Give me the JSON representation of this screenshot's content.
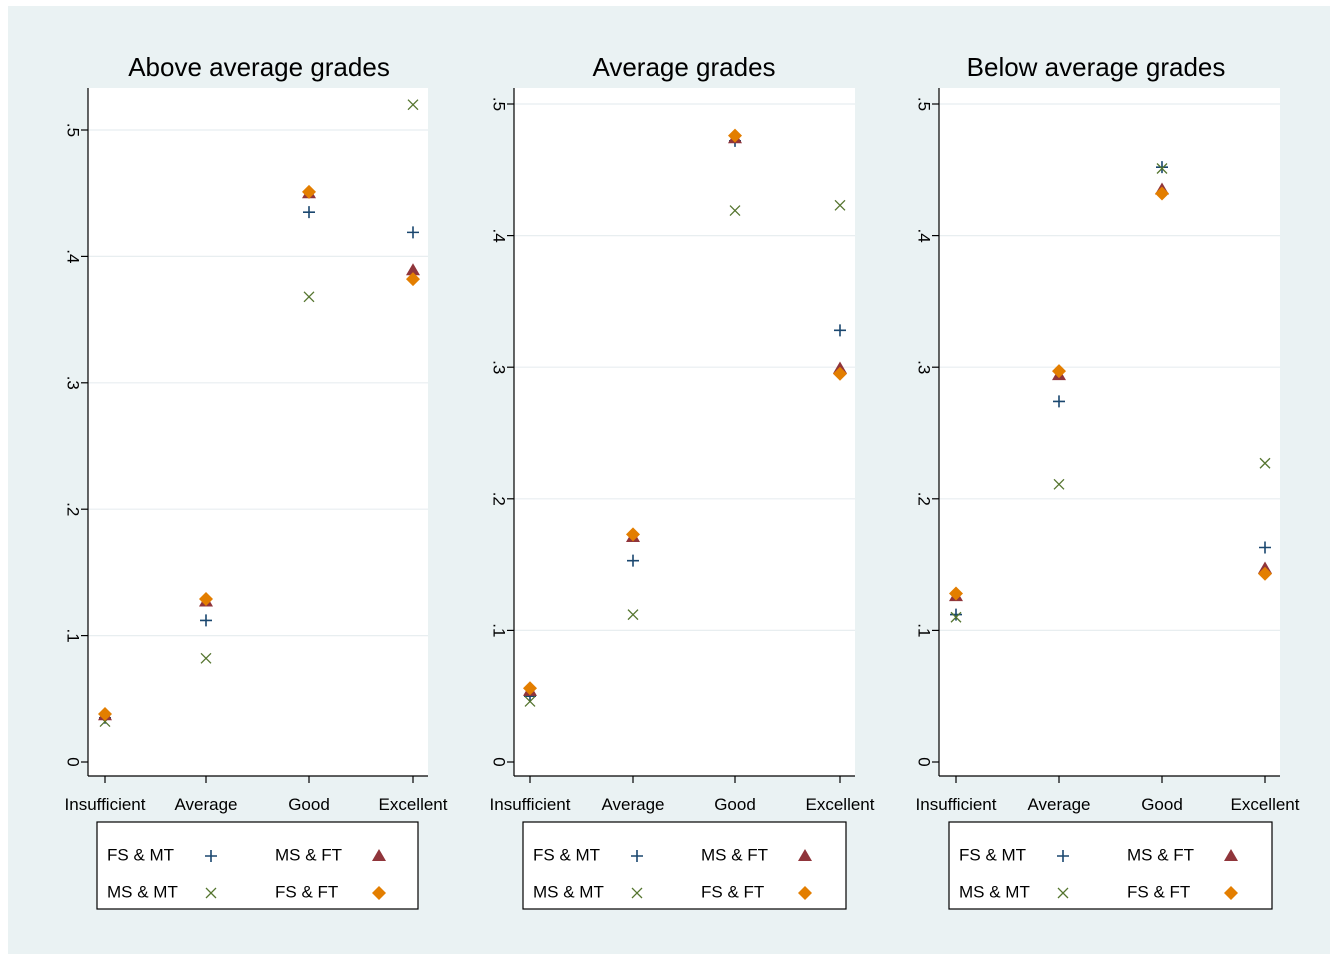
{
  "colors": {
    "FS & MT": "#1a476f",
    "MS & MT": "#55752f",
    "MS & FT": "#90353b",
    "FS & FT": "#e37e00"
  },
  "chart_data": [
    {
      "type": "scatter",
      "title": "Above average grades",
      "categories": [
        "Insufficient",
        "Average",
        "Good",
        "Excellent"
      ],
      "ylim": [
        0,
        0.5
      ],
      "yticks": [
        0,
        0.1,
        0.2,
        0.3,
        0.4,
        0.5
      ],
      "ytick_labels": [
        "0",
        ".1",
        ".2",
        ".3",
        ".4",
        ".5"
      ],
      "grid": true,
      "legend_position": "bottom",
      "series": [
        {
          "name": "FS & MT",
          "marker": "plus",
          "values": [
            0.035,
            0.112,
            0.435,
            0.419
          ]
        },
        {
          "name": "MS & MT",
          "marker": "x",
          "values": [
            0.032,
            0.082,
            0.368,
            0.52
          ]
        },
        {
          "name": "MS & FT",
          "marker": "triangle",
          "values": [
            0.037,
            0.127,
            0.45,
            0.389
          ]
        },
        {
          "name": "FS & FT",
          "marker": "diamond",
          "values": [
            0.038,
            0.129,
            0.451,
            0.382
          ]
        }
      ]
    },
    {
      "type": "scatter",
      "title": "Average grades",
      "categories": [
        "Insufficient",
        "Average",
        "Good",
        "Excellent"
      ],
      "ylim": [
        0,
        0.5
      ],
      "yticks": [
        0,
        0.1,
        0.2,
        0.3,
        0.4,
        0.5
      ],
      "ytick_labels": [
        "0",
        ".1",
        ".2",
        ".3",
        ".4",
        ".5"
      ],
      "grid": true,
      "legend_position": "bottom",
      "series": [
        {
          "name": "FS & MT",
          "marker": "plus",
          "values": [
            0.05,
            0.153,
            0.472,
            0.328
          ]
        },
        {
          "name": "MS & MT",
          "marker": "x",
          "values": [
            0.046,
            0.112,
            0.419,
            0.423
          ]
        },
        {
          "name": "MS & FT",
          "marker": "triangle",
          "values": [
            0.054,
            0.171,
            0.474,
            0.299
          ]
        },
        {
          "name": "FS & FT",
          "marker": "diamond",
          "values": [
            0.056,
            0.173,
            0.476,
            0.295
          ]
        }
      ]
    },
    {
      "type": "scatter",
      "title": "Below average grades",
      "categories": [
        "Insufficient",
        "Average",
        "Good",
        "Excellent"
      ],
      "ylim": [
        0,
        0.5
      ],
      "yticks": [
        0,
        0.1,
        0.2,
        0.3,
        0.4,
        0.5
      ],
      "ytick_labels": [
        "0",
        ".1",
        ".2",
        ".3",
        ".4",
        ".5"
      ],
      "grid": true,
      "legend_position": "bottom",
      "series": [
        {
          "name": "FS & MT",
          "marker": "plus",
          "values": [
            0.112,
            0.274,
            0.452,
            0.163
          ]
        },
        {
          "name": "MS & MT",
          "marker": "x",
          "values": [
            0.11,
            0.211,
            0.451,
            0.227
          ]
        },
        {
          "name": "MS & FT",
          "marker": "triangle",
          "values": [
            0.126,
            0.294,
            0.435,
            0.147
          ]
        },
        {
          "name": "FS & FT",
          "marker": "diamond",
          "values": [
            0.128,
            0.297,
            0.432,
            0.143
          ]
        }
      ]
    }
  ]
}
